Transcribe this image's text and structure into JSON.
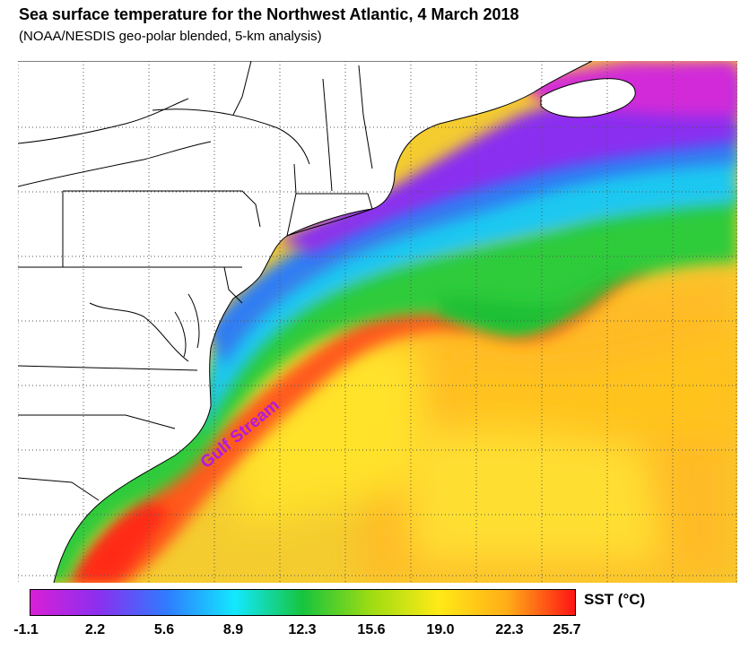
{
  "title": "Sea surface temperature for the Northwest Atlantic, 4 March 2018",
  "subtitle": "(NOAA/NESDIS geo-polar blended, 5-km analysis)",
  "map_label": "Gulf Stream",
  "colorbar": {
    "label": "SST (°C)",
    "ticks": [
      "-1.1",
      "2.2",
      "5.6",
      "8.9",
      "12.3",
      "15.6",
      "19.0",
      "22.3",
      "25.7"
    ],
    "colors": [
      "#d91fd6",
      "#8b2fef",
      "#2f7bff",
      "#13e8ff",
      "#16c43e",
      "#9edc12",
      "#ffea16",
      "#ffad18",
      "#ff1414"
    ]
  },
  "colors": {
    "land": "#ffffff",
    "border": "#000000",
    "graticule": "#555555",
    "label": "#b21adf"
  }
}
